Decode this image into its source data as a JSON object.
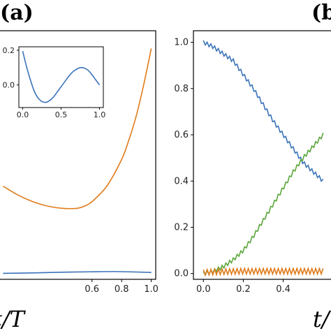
{
  "panels": {
    "a": {
      "label": "(a)"
    },
    "b": {
      "label": "(b"
    }
  },
  "colors": {
    "blue": "#3b73b9",
    "orange": "#e07b1a",
    "green": "#5aa63a",
    "axis": "#000000"
  },
  "chart_data": [
    {
      "id": "panel-a-main",
      "type": "line",
      "xlabel": "t/T",
      "ylabel": "",
      "xlim": [
        -0.03,
        1.03
      ],
      "x_ticks": [
        0.6,
        0.8,
        1.0
      ],
      "x_tick_labels": [
        "0.6",
        "0.8",
        "1.0"
      ],
      "series": [
        {
          "color": "#e07b1a",
          "x": [
            0.0,
            0.1,
            0.2,
            0.3,
            0.4,
            0.5,
            0.55,
            0.6,
            0.7,
            0.8,
            0.85,
            0.9,
            0.95,
            1.0
          ],
          "y": [
            0.4,
            0.36,
            0.33,
            0.31,
            0.3,
            0.3,
            0.31,
            0.33,
            0.4,
            0.52,
            0.61,
            0.72,
            0.86,
            1.02
          ]
        },
        {
          "color": "#3b73b9",
          "x": [
            0.0,
            0.2,
            0.4,
            0.6,
            0.75,
            0.9,
            1.0
          ],
          "y": [
            0.007,
            0.009,
            0.012,
            0.014,
            0.015,
            0.013,
            0.011
          ]
        }
      ]
    },
    {
      "id": "panel-a-inset",
      "type": "line",
      "xlim": [
        -0.05,
        1.05
      ],
      "ylim": [
        -0.13,
        0.22
      ],
      "x_ticks": [
        0.0,
        0.5,
        1.0
      ],
      "x_tick_labels": [
        "0.0",
        "0.5",
        "1.0"
      ],
      "y_ticks": [
        0.0,
        0.2
      ],
      "y_tick_labels": [
        "0.0",
        "0.2"
      ],
      "series": [
        {
          "color": "#3b73b9",
          "x": [
            0.0,
            0.05,
            0.1,
            0.15,
            0.2,
            0.25,
            0.3,
            0.35,
            0.4,
            0.45,
            0.5,
            0.55,
            0.6,
            0.65,
            0.7,
            0.75,
            0.8,
            0.85,
            0.9,
            0.95,
            1.0
          ],
          "y": [
            0.195,
            0.105,
            0.03,
            -0.035,
            -0.075,
            -0.095,
            -0.1,
            -0.09,
            -0.07,
            -0.04,
            -0.01,
            0.02,
            0.05,
            0.075,
            0.09,
            0.1,
            0.098,
            0.085,
            0.06,
            0.03,
            0.0
          ]
        }
      ]
    },
    {
      "id": "panel-b-main",
      "type": "line",
      "xlabel": "t/",
      "ylabel": "",
      "xlim": [
        -0.05,
        0.65
      ],
      "ylim": [
        -0.025,
        1.05
      ],
      "x_ticks": [
        0.0,
        0.2,
        0.4
      ],
      "x_tick_labels": [
        "0.0",
        "0.2",
        "0.4"
      ],
      "y_ticks": [
        0.0,
        0.2,
        0.4,
        0.6,
        0.8,
        1.0
      ],
      "y_tick_labels": [
        "0.0",
        "0.2",
        "0.4",
        "0.6",
        "0.8",
        "1.0"
      ],
      "series": [
        {
          "color": "#3b73b9",
          "x": [
            0.0,
            0.05,
            0.1,
            0.15,
            0.2,
            0.25,
            0.3,
            0.35,
            0.4,
            0.45,
            0.5,
            0.55,
            0.6
          ],
          "y": [
            1.0,
            0.98,
            0.95,
            0.92,
            0.86,
            0.8,
            0.73,
            0.66,
            0.6,
            0.54,
            0.48,
            0.44,
            0.4
          ],
          "oscillation": 0.008
        },
        {
          "color": "#5aa63a",
          "x": [
            0.0,
            0.05,
            0.1,
            0.15,
            0.2,
            0.25,
            0.3,
            0.35,
            0.4,
            0.45,
            0.5,
            0.55,
            0.6
          ],
          "y": [
            0.0,
            0.01,
            0.03,
            0.06,
            0.1,
            0.16,
            0.23,
            0.3,
            0.37,
            0.44,
            0.5,
            0.55,
            0.6
          ],
          "oscillation": 0.008
        },
        {
          "color": "#e07b1a",
          "x": [
            0.0,
            0.1,
            0.2,
            0.3,
            0.4,
            0.5,
            0.6
          ],
          "y": [
            0.005,
            0.008,
            0.01,
            0.01,
            0.01,
            0.01,
            0.01
          ],
          "oscillation": 0.012
        }
      ]
    }
  ]
}
